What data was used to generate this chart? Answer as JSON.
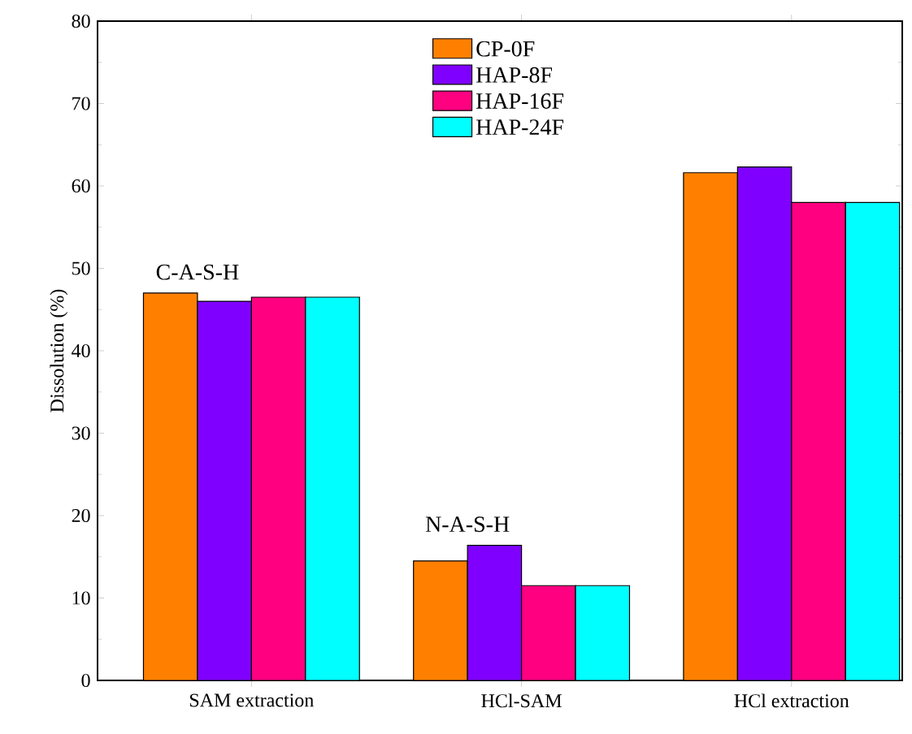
{
  "chart_data": {
    "type": "bar",
    "ylabel": "Dissolution (%)",
    "categories": [
      "SAM extraction",
      "HCl-SAM",
      "HCl extraction"
    ],
    "series": [
      {
        "name": "CP-0F",
        "color": "#ff8000",
        "values": [
          47.0,
          14.5,
          61.6
        ]
      },
      {
        "name": "HAP-8F",
        "color": "#8000ff",
        "values": [
          46.0,
          16.4,
          62.3
        ]
      },
      {
        "name": "HAP-16F",
        "color": "#ff0080",
        "values": [
          46.5,
          11.5,
          58.0
        ]
      },
      {
        "name": "HAP-24F",
        "color": "#00ffff",
        "values": [
          46.5,
          11.5,
          58.0
        ]
      }
    ],
    "annotations": [
      "C-A-S-H",
      "N-A-S-H"
    ],
    "ylim": [
      0,
      80
    ],
    "yticks": [
      0,
      10,
      20,
      30,
      40,
      50,
      60,
      70,
      80
    ],
    "legend": "top",
    "grid": false
  }
}
